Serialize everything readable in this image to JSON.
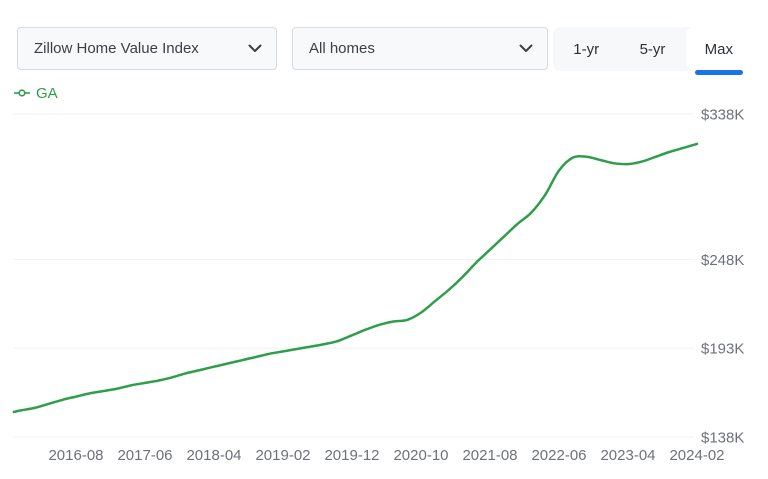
{
  "header": {
    "metric_dropdown": {
      "value": "Zillow Home Value Index",
      "icon": "chevron-down"
    },
    "home_type_dropdown": {
      "value": "All homes",
      "icon": "chevron-down"
    },
    "range_tabs": [
      {
        "label": "1-yr",
        "selected": false
      },
      {
        "label": "5-yr",
        "selected": false
      },
      {
        "label": "Max",
        "selected": true
      }
    ]
  },
  "legend": {
    "items": [
      {
        "label": "GA",
        "color": "#2f9e4a",
        "marker": "line-dot"
      }
    ]
  },
  "colors": {
    "accent_blue": "#1a73e8",
    "series_green": "#2f9e4a",
    "grid": "#f0f0f1",
    "axis_text": "#6e7177",
    "control_bg": "#f8f9fa",
    "control_border": "#d7dade",
    "control_text": "#3a4047",
    "tabs_bg": "#f7f8f9"
  },
  "chart_data": {
    "type": "line",
    "grid": true,
    "legend_position": "top-left",
    "y_unit": "USD thousands",
    "y_ticks": [
      {
        "label": "$338K",
        "value": 338
      },
      {
        "label": "$248K",
        "value": 248
      },
      {
        "label": "$193K",
        "value": 193
      },
      {
        "label": "$138K",
        "value": 138
      }
    ],
    "x_tick_labels": [
      "2016-08",
      "2017-06",
      "2018-04",
      "2019-02",
      "2019-12",
      "2020-10",
      "2021-08",
      "2022-06",
      "2023-04",
      "2024-02"
    ],
    "x_range": [
      "2015-11",
      "2024-02"
    ],
    "series": [
      {
        "name": "GA",
        "color": "#2f9e4a",
        "points": [
          [
            "2015-11",
            153.5
          ],
          [
            "2015-12",
            154.5
          ],
          [
            "2016-02",
            156
          ],
          [
            "2016-04",
            158.5
          ],
          [
            "2016-06",
            161
          ],
          [
            "2016-08",
            163
          ],
          [
            "2016-10",
            165
          ],
          [
            "2016-12",
            166.5
          ],
          [
            "2017-02",
            168
          ],
          [
            "2017-04",
            170
          ],
          [
            "2017-06",
            171.5
          ],
          [
            "2017-08",
            173
          ],
          [
            "2017-10",
            175
          ],
          [
            "2017-12",
            177.5
          ],
          [
            "2018-02",
            179.5
          ],
          [
            "2018-04",
            181.5
          ],
          [
            "2018-06",
            183.5
          ],
          [
            "2018-08",
            185.5
          ],
          [
            "2018-10",
            187.5
          ],
          [
            "2018-12",
            189.5
          ],
          [
            "2019-02",
            191
          ],
          [
            "2019-04",
            192.5
          ],
          [
            "2019-06",
            194
          ],
          [
            "2019-08",
            195.5
          ],
          [
            "2019-10",
            197.5
          ],
          [
            "2019-12",
            201
          ],
          [
            "2020-02",
            204.5
          ],
          [
            "2020-04",
            207.5
          ],
          [
            "2020-06",
            209.5
          ],
          [
            "2020-08",
            210.5
          ],
          [
            "2020-10",
            215
          ],
          [
            "2020-12",
            222
          ],
          [
            "2021-02",
            229
          ],
          [
            "2021-04",
            237
          ],
          [
            "2021-06",
            246
          ],
          [
            "2021-08",
            254
          ],
          [
            "2021-10",
            262
          ],
          [
            "2021-12",
            270
          ],
          [
            "2022-02",
            277
          ],
          [
            "2022-04",
            288
          ],
          [
            "2022-06",
            303
          ],
          [
            "2022-08",
            311
          ],
          [
            "2022-10",
            311.5
          ],
          [
            "2022-12",
            309.5
          ],
          [
            "2023-02",
            307.5
          ],
          [
            "2023-04",
            307
          ],
          [
            "2023-06",
            308.5
          ],
          [
            "2023-08",
            311.5
          ],
          [
            "2023-10",
            314.5
          ],
          [
            "2023-12",
            317
          ],
          [
            "2024-02",
            319.5
          ]
        ]
      }
    ]
  }
}
